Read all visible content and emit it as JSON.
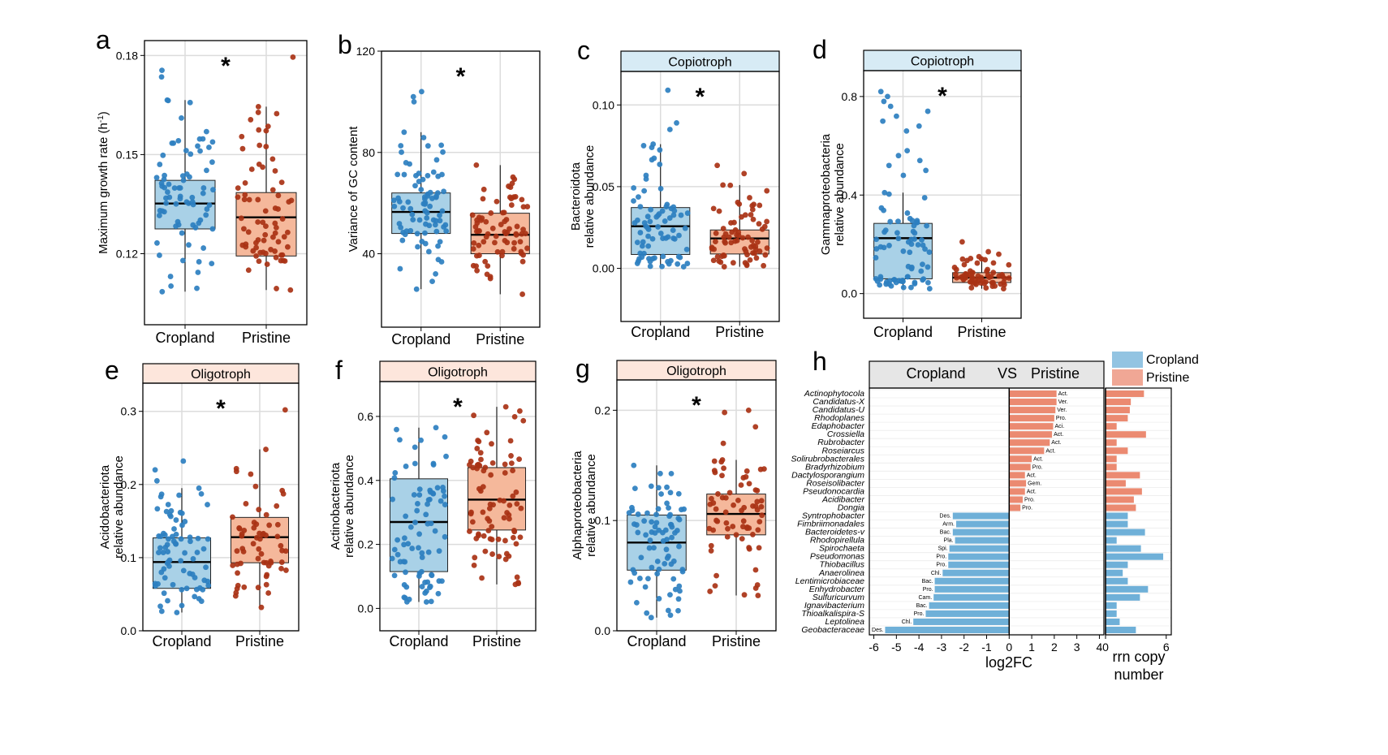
{
  "colors": {
    "cropland_fill": "#a9d1e7",
    "cropland_point": "#2d7fc0",
    "cropland_bar": "#6fb0d8",
    "pristine_fill": "#f5b89b",
    "pristine_point": "#a93215",
    "pristine_bar": "#eb8a71",
    "oligo_strip": "#fde6dc",
    "copio_strip": "#d7ebf5",
    "grid": "#dcdcdc"
  },
  "chart_data": [
    {
      "type": "box",
      "panel": "a",
      "ylabel": "Maximum growth rate (h",
      "ylabel_sup": "-1",
      "ylabel_close": ")",
      "strip": "",
      "categories": [
        "Cropland",
        "Pristine"
      ],
      "yticks": [
        0.12,
        0.15,
        0.18
      ],
      "ytick_labels": [
        "0.12",
        "0.15",
        "0.18"
      ],
      "ylim": [
        0.0985,
        0.1845
      ],
      "significance": "*",
      "boxes": [
        {
          "name": "Cropland",
          "q1": 0.1275,
          "median": 0.1352,
          "q3": 0.1422,
          "min": 0.1085,
          "max": 0.1665,
          "n": 75,
          "seed": 11,
          "outliers": [
            0.1755,
            0.1735
          ]
        },
        {
          "name": "Pristine",
          "q1": 0.1193,
          "median": 0.131,
          "q3": 0.1385,
          "min": 0.109,
          "max": 0.1645,
          "n": 70,
          "seed": 12,
          "outliers": [
            0.1795
          ]
        }
      ]
    },
    {
      "type": "box",
      "panel": "b",
      "ylabel": "Variance of GC content",
      "strip": "",
      "categories": [
        "Cropland",
        "Pristine"
      ],
      "yticks": [
        40,
        80,
        120
      ],
      "ytick_labels": [
        "40",
        "80",
        "120"
      ],
      "ylim": [
        11,
        120
      ],
      "significance": "*",
      "boxes": [
        {
          "name": "Cropland",
          "q1": 48,
          "median": 56.5,
          "q3": 64,
          "min": 26,
          "max": 88,
          "n": 80,
          "seed": 21,
          "outliers": [
            104,
            102,
            100
          ]
        },
        {
          "name": "Pristine",
          "q1": 40,
          "median": 47.5,
          "q3": 56,
          "min": 24,
          "max": 75,
          "n": 75,
          "seed": 22,
          "outliers": []
        }
      ]
    },
    {
      "type": "box",
      "panel": "c",
      "ylabel": "Bacteroidota",
      "ylabel2": "relative abundance",
      "strip": "Copiotroph",
      "categories": [
        "Cropland",
        "Pristine"
      ],
      "yticks": [
        0.0,
        0.05,
        0.1
      ],
      "ytick_labels": [
        "0.00",
        "0.05",
        "0.10"
      ],
      "ylim": [
        -0.0325,
        0.1205
      ],
      "significance": "*",
      "boxes": [
        {
          "name": "Cropland",
          "q1": 0.0085,
          "median": 0.0258,
          "q3": 0.0372,
          "min": 0.001,
          "max": 0.076,
          "n": 75,
          "seed": 31,
          "outliers": [
            0.109,
            0.089,
            0.085
          ]
        },
        {
          "name": "Pristine",
          "q1": 0.0088,
          "median": 0.0183,
          "q3": 0.0235,
          "min": 0.001,
          "max": 0.051,
          "n": 70,
          "seed": 32,
          "outliers": [
            0.063,
            0.058
          ]
        }
      ]
    },
    {
      "type": "box",
      "panel": "d",
      "ylabel": "Gammaproteobacteria",
      "ylabel2": "relative abundance",
      "strip": "Copiotroph",
      "categories": [
        "Cropland",
        "Pristine"
      ],
      "yticks": [
        0.0,
        0.4,
        0.8
      ],
      "ytick_labels": [
        "0.0",
        "0.4",
        "0.8"
      ],
      "ylim": [
        -0.1,
        0.905
      ],
      "significance": "*",
      "boxes": [
        {
          "name": "Cropland",
          "q1": 0.06,
          "median": 0.225,
          "q3": 0.285,
          "min": 0.02,
          "max": 0.41,
          "n": 70,
          "seed": 41,
          "outliers": [
            0.82,
            0.8,
            0.78,
            0.76,
            0.74,
            0.72,
            0.7,
            0.68,
            0.66,
            0.58,
            0.56,
            0.54,
            0.52,
            0.5,
            0.48
          ]
        },
        {
          "name": "Pristine",
          "q1": 0.045,
          "median": 0.065,
          "q3": 0.085,
          "min": 0.02,
          "max": 0.15,
          "n": 60,
          "seed": 42,
          "outliers": [
            0.21,
            0.17,
            0.16
          ]
        }
      ]
    },
    {
      "type": "box",
      "panel": "e",
      "ylabel": "Acidobacteriota",
      "ylabel2": "relative abundance",
      "strip": "Oligotroph",
      "categories": [
        "Cropland",
        "Pristine"
      ],
      "yticks": [
        0.0,
        0.1,
        0.2,
        0.3
      ],
      "ytick_labels": [
        "0.0",
        "0.1",
        "0.2",
        "0.3"
      ],
      "ylim": [
        0.0,
        0.3385
      ],
      "significance": "*",
      "boxes": [
        {
          "name": "Cropland",
          "q1": 0.058,
          "median": 0.094,
          "q3": 0.127,
          "min": 0.025,
          "max": 0.195,
          "n": 75,
          "seed": 51,
          "outliers": [
            0.232,
            0.22,
            0.205
          ]
        },
        {
          "name": "Pristine",
          "q1": 0.093,
          "median": 0.128,
          "q3": 0.155,
          "min": 0.032,
          "max": 0.248,
          "n": 60,
          "seed": 52,
          "outliers": [
            0.302
          ]
        }
      ]
    },
    {
      "type": "box",
      "panel": "f",
      "ylabel": "Actinobacteriota",
      "ylabel2": "relative abundance",
      "strip": "Oligotroph",
      "categories": [
        "Cropland",
        "Pristine"
      ],
      "yticks": [
        0.0,
        0.2,
        0.4,
        0.6
      ],
      "ytick_labels": [
        "0.0",
        "0.2",
        "0.4",
        "0.6"
      ],
      "ylim": [
        -0.07,
        0.709
      ],
      "significance": "*",
      "boxes": [
        {
          "name": "Cropland",
          "q1": 0.115,
          "median": 0.27,
          "q3": 0.405,
          "min": 0.02,
          "max": 0.565,
          "n": 80,
          "seed": 61,
          "outliers": []
        },
        {
          "name": "Pristine",
          "q1": 0.245,
          "median": 0.34,
          "q3": 0.44,
          "min": 0.075,
          "max": 0.63,
          "n": 80,
          "seed": 62,
          "outliers": []
        }
      ]
    },
    {
      "type": "box",
      "panel": "g",
      "ylabel": "Alphaproteobacteria",
      "ylabel2": "relative abundance",
      "strip": "Oligotroph",
      "categories": [
        "Cropland",
        "Pristine"
      ],
      "yticks": [
        0.0,
        0.1,
        0.2
      ],
      "ytick_labels": [
        "0.0",
        "0.1",
        "0.2"
      ],
      "ylim": [
        0.0,
        0.2275
      ],
      "significance": "*",
      "boxes": [
        {
          "name": "Cropland",
          "q1": 0.055,
          "median": 0.08,
          "q3": 0.105,
          "min": 0.012,
          "max": 0.15,
          "n": 80,
          "seed": 71,
          "outliers": []
        },
        {
          "name": "Pristine",
          "q1": 0.087,
          "median": 0.106,
          "q3": 0.124,
          "min": 0.032,
          "max": 0.155,
          "n": 65,
          "seed": 72,
          "outliers": [
            0.2,
            0.198,
            0.185,
            0.17
          ]
        }
      ]
    },
    {
      "type": "diverging_bar",
      "panel": "h",
      "header": {
        "left": "Cropland",
        "vs": "VS",
        "right": "Pristine"
      },
      "legend": [
        "Cropland",
        "Pristine"
      ],
      "xlabel": "log2FC",
      "xticks": [
        -6,
        -5,
        -4,
        -3,
        -2,
        -1,
        0,
        1,
        2,
        3,
        4
      ],
      "xtick_labels": [
        "-6",
        "-5",
        "-4",
        "-3",
        "-2",
        "-1",
        "0",
        "1",
        "2",
        "3",
        "4"
      ],
      "xlim": [
        -6.2,
        4.2
      ],
      "rrn_xlabel": "rrn copy",
      "rrn_xlabel2": "number",
      "rrn_xticks": [
        0,
        6
      ],
      "rrn_xtick_labels": [
        "0",
        "6"
      ],
      "rrn_xlim": [
        0,
        6.5
      ],
      "taxa": [
        {
          "name": "Actinophytocola",
          "phylum": "Act.",
          "log2fc": 2.1,
          "rrn": 3.8
        },
        {
          "name": "Candidatus-X",
          "phylum": "Ver.",
          "log2fc": 2.1,
          "rrn": 2.5
        },
        {
          "name": "Candidatus-U",
          "phylum": "Ver.",
          "log2fc": 2.05,
          "rrn": 2.4
        },
        {
          "name": "Rhodoplanes",
          "phylum": "Pro.",
          "log2fc": 2.0,
          "rrn": 2.2
        },
        {
          "name": "Edaphobacter",
          "phylum": "Aci.",
          "log2fc": 1.95,
          "rrn": 1.1
        },
        {
          "name": "Crossiella",
          "phylum": "Act.",
          "log2fc": 1.9,
          "rrn": 4.0
        },
        {
          "name": "Rubrobacter",
          "phylum": "Act.",
          "log2fc": 1.8,
          "rrn": 1.1
        },
        {
          "name": "Roseiarcus",
          "phylum": "Act.",
          "log2fc": 1.55,
          "rrn": 2.2
        },
        {
          "name": "Solirubrobacterales",
          "phylum": "Act.",
          "log2fc": 1.0,
          "rrn": 1.1
        },
        {
          "name": "Bradyrhizobium",
          "phylum": "Pro.",
          "log2fc": 0.95,
          "rrn": 1.1
        },
        {
          "name": "Dactylosporangium",
          "phylum": "Act.",
          "log2fc": 0.7,
          "rrn": 3.4
        },
        {
          "name": "Roseisolibacter",
          "phylum": "Gem.",
          "log2fc": 0.75,
          "rrn": 2.0
        },
        {
          "name": "Pseudonocardia",
          "phylum": "Act.",
          "log2fc": 0.7,
          "rrn": 3.6
        },
        {
          "name": "Acidibacter",
          "phylum": "Pro.",
          "log2fc": 0.6,
          "rrn": 2.8
        },
        {
          "name": "Dongia",
          "phylum": "Pro.",
          "log2fc": 0.5,
          "rrn": 3.0
        },
        {
          "name": "Syntrophobacter",
          "phylum": "Des.",
          "log2fc": -2.5,
          "rrn": 2.2
        },
        {
          "name": "Fimbriimonadales",
          "phylum": "Arm.",
          "log2fc": -2.35,
          "rrn": 2.2
        },
        {
          "name": "Bacteroidetes-v",
          "phylum": "Bac.",
          "log2fc": -2.5,
          "rrn": 3.9
        },
        {
          "name": "Rhodopirellula",
          "phylum": "Pla.",
          "log2fc": -2.4,
          "rrn": 1.1
        },
        {
          "name": "Spirochaeta",
          "phylum": "Spi.",
          "log2fc": -2.65,
          "rrn": 3.5
        },
        {
          "name": "Pseudomonas",
          "phylum": "Pro.",
          "log2fc": -2.7,
          "rrn": 5.7
        },
        {
          "name": "Thiobacillus",
          "phylum": "Pro.",
          "log2fc": -2.7,
          "rrn": 2.2
        },
        {
          "name": "Anaerolinea",
          "phylum": "Chl.",
          "log2fc": -2.95,
          "rrn": 1.7
        },
        {
          "name": "Lentimicrobiaceae",
          "phylum": "Bac.",
          "log2fc": -3.3,
          "rrn": 2.2
        },
        {
          "name": "Enhydrobacter",
          "phylum": "Pro.",
          "log2fc": -3.3,
          "rrn": 4.2
        },
        {
          "name": "Sulfuricurvum",
          "phylum": "Cam.",
          "log2fc": -3.35,
          "rrn": 3.4
        },
        {
          "name": "Ignavibacterium",
          "phylum": "Bac.",
          "log2fc": -3.55,
          "rrn": 1.1
        },
        {
          "name": "Thioalkalispira-S",
          "phylum": "Pro.",
          "log2fc": -3.7,
          "rrn": 1.1
        },
        {
          "name": "Leptolinea",
          "phylum": "Chl.",
          "log2fc": -4.25,
          "rrn": 1.4
        },
        {
          "name": "Geobacteraceae",
          "phylum": "Des.",
          "log2fc": -5.5,
          "rrn": 3.0
        }
      ]
    }
  ]
}
